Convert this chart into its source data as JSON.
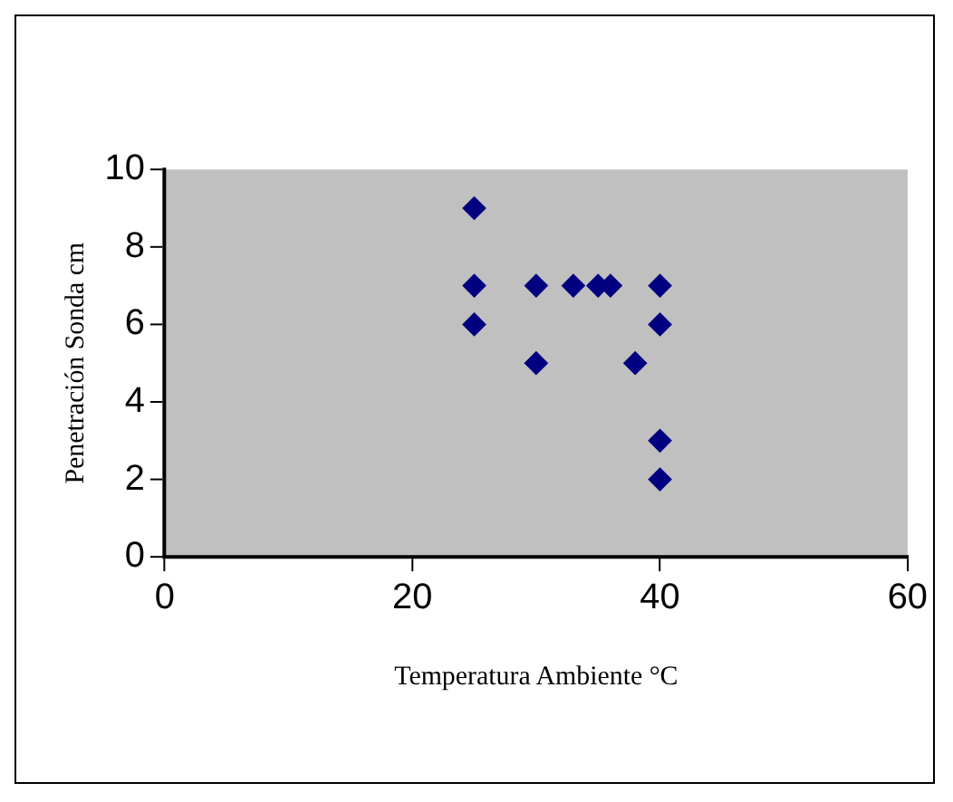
{
  "chart_data": {
    "type": "scatter",
    "xlabel": "Temperatura Ambiente °C",
    "ylabel": "Penetración Sonda cm",
    "x": [
      25,
      25,
      25,
      30,
      30,
      33,
      35,
      36,
      40,
      40,
      38,
      40,
      40
    ],
    "values": [
      9,
      7,
      6,
      7,
      5,
      7,
      7,
      7,
      7,
      6,
      5,
      3,
      2
    ],
    "color": "#000080",
    "marker": "diamond",
    "grid": false,
    "legend": false,
    "xlim": [
      0,
      60
    ],
    "xticks": [
      0,
      20,
      40,
      60
    ],
    "ylim": [
      0,
      10
    ],
    "yticks": [
      0,
      2,
      4,
      6,
      8,
      10
    ]
  }
}
